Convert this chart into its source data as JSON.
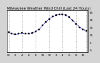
{
  "title": "Milwaukee Weather Wind Chill (Last 24 Hours)",
  "x_values": [
    0,
    1,
    2,
    3,
    4,
    5,
    6,
    7,
    8,
    9,
    10,
    11,
    12,
    13,
    14,
    15,
    16,
    17,
    18,
    19,
    20,
    21,
    22,
    23
  ],
  "y_values": [
    18,
    16,
    15,
    16,
    17,
    16,
    16,
    17,
    19,
    22,
    27,
    32,
    36,
    39,
    41,
    42,
    42,
    41,
    38,
    34,
    29,
    25,
    22,
    20
  ],
  "y_ticks": [
    -5,
    5,
    15,
    25,
    35,
    45
  ],
  "x_ticks": [
    0,
    2,
    4,
    6,
    8,
    10,
    12,
    14,
    16,
    18,
    20,
    22
  ],
  "x_tick_labels": [
    "12",
    "2",
    "4",
    "6",
    "8",
    "10",
    "12",
    "2",
    "4",
    "6",
    "8",
    "10"
  ],
  "ylim": [
    -8,
    48
  ],
  "xlim": [
    -0.5,
    23.5
  ],
  "line_color": "#0000cc",
  "marker_color": "#000000",
  "bg_color": "#d4d4d4",
  "plot_bg_color": "#ffffff",
  "grid_color": "#888888",
  "grid_x_positions": [
    0,
    4,
    8,
    12,
    16,
    20,
    23
  ],
  "title_fontsize": 3.8,
  "tick_fontsize": 3.0,
  "linewidth": 0.8,
  "markersize": 1.5
}
